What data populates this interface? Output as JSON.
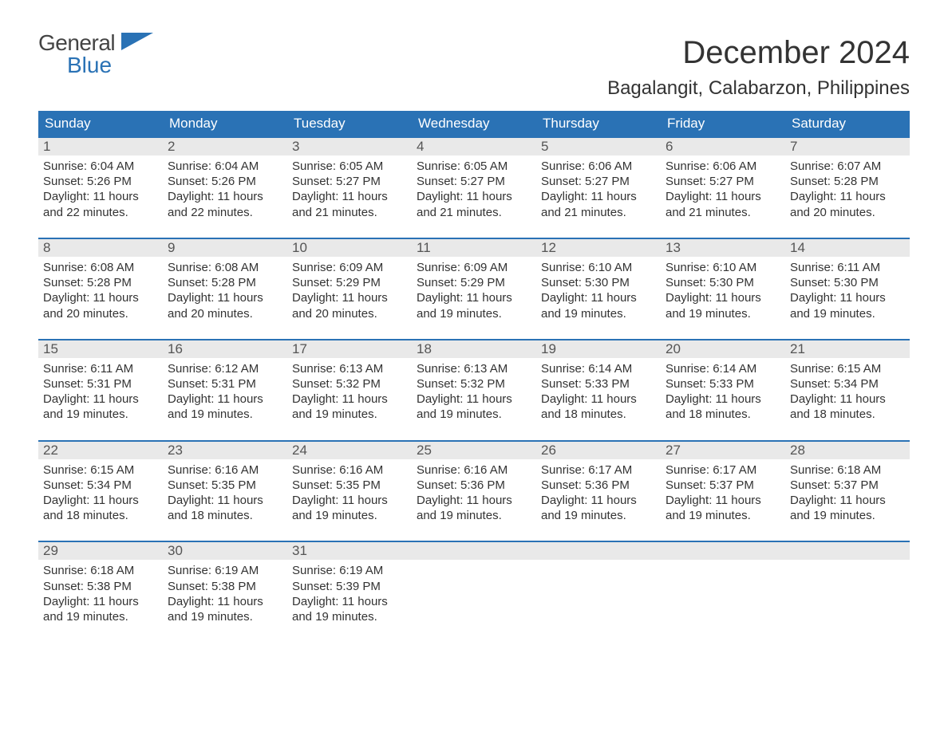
{
  "logo": {
    "line1": "General",
    "line2": "Blue"
  },
  "title": "December 2024",
  "location": "Bagalangit, Calabarzon, Philippines",
  "colors": {
    "header_bg": "#2a72b5",
    "header_text": "#ffffff",
    "daynum_bg": "#e9e9e9",
    "body_text": "#333333",
    "logo_blue": "#2a72b5"
  },
  "day_headers": [
    "Sunday",
    "Monday",
    "Tuesday",
    "Wednesday",
    "Thursday",
    "Friday",
    "Saturday"
  ],
  "weeks": [
    [
      {
        "n": "1",
        "sunrise": "Sunrise: 6:04 AM",
        "sunset": "Sunset: 5:26 PM",
        "day1": "Daylight: 11 hours",
        "day2": "and 22 minutes."
      },
      {
        "n": "2",
        "sunrise": "Sunrise: 6:04 AM",
        "sunset": "Sunset: 5:26 PM",
        "day1": "Daylight: 11 hours",
        "day2": "and 22 minutes."
      },
      {
        "n": "3",
        "sunrise": "Sunrise: 6:05 AM",
        "sunset": "Sunset: 5:27 PM",
        "day1": "Daylight: 11 hours",
        "day2": "and 21 minutes."
      },
      {
        "n": "4",
        "sunrise": "Sunrise: 6:05 AM",
        "sunset": "Sunset: 5:27 PM",
        "day1": "Daylight: 11 hours",
        "day2": "and 21 minutes."
      },
      {
        "n": "5",
        "sunrise": "Sunrise: 6:06 AM",
        "sunset": "Sunset: 5:27 PM",
        "day1": "Daylight: 11 hours",
        "day2": "and 21 minutes."
      },
      {
        "n": "6",
        "sunrise": "Sunrise: 6:06 AM",
        "sunset": "Sunset: 5:27 PM",
        "day1": "Daylight: 11 hours",
        "day2": "and 21 minutes."
      },
      {
        "n": "7",
        "sunrise": "Sunrise: 6:07 AM",
        "sunset": "Sunset: 5:28 PM",
        "day1": "Daylight: 11 hours",
        "day2": "and 20 minutes."
      }
    ],
    [
      {
        "n": "8",
        "sunrise": "Sunrise: 6:08 AM",
        "sunset": "Sunset: 5:28 PM",
        "day1": "Daylight: 11 hours",
        "day2": "and 20 minutes."
      },
      {
        "n": "9",
        "sunrise": "Sunrise: 6:08 AM",
        "sunset": "Sunset: 5:28 PM",
        "day1": "Daylight: 11 hours",
        "day2": "and 20 minutes."
      },
      {
        "n": "10",
        "sunrise": "Sunrise: 6:09 AM",
        "sunset": "Sunset: 5:29 PM",
        "day1": "Daylight: 11 hours",
        "day2": "and 20 minutes."
      },
      {
        "n": "11",
        "sunrise": "Sunrise: 6:09 AM",
        "sunset": "Sunset: 5:29 PM",
        "day1": "Daylight: 11 hours",
        "day2": "and 19 minutes."
      },
      {
        "n": "12",
        "sunrise": "Sunrise: 6:10 AM",
        "sunset": "Sunset: 5:30 PM",
        "day1": "Daylight: 11 hours",
        "day2": "and 19 minutes."
      },
      {
        "n": "13",
        "sunrise": "Sunrise: 6:10 AM",
        "sunset": "Sunset: 5:30 PM",
        "day1": "Daylight: 11 hours",
        "day2": "and 19 minutes."
      },
      {
        "n": "14",
        "sunrise": "Sunrise: 6:11 AM",
        "sunset": "Sunset: 5:30 PM",
        "day1": "Daylight: 11 hours",
        "day2": "and 19 minutes."
      }
    ],
    [
      {
        "n": "15",
        "sunrise": "Sunrise: 6:11 AM",
        "sunset": "Sunset: 5:31 PM",
        "day1": "Daylight: 11 hours",
        "day2": "and 19 minutes."
      },
      {
        "n": "16",
        "sunrise": "Sunrise: 6:12 AM",
        "sunset": "Sunset: 5:31 PM",
        "day1": "Daylight: 11 hours",
        "day2": "and 19 minutes."
      },
      {
        "n": "17",
        "sunrise": "Sunrise: 6:13 AM",
        "sunset": "Sunset: 5:32 PM",
        "day1": "Daylight: 11 hours",
        "day2": "and 19 minutes."
      },
      {
        "n": "18",
        "sunrise": "Sunrise: 6:13 AM",
        "sunset": "Sunset: 5:32 PM",
        "day1": "Daylight: 11 hours",
        "day2": "and 19 minutes."
      },
      {
        "n": "19",
        "sunrise": "Sunrise: 6:14 AM",
        "sunset": "Sunset: 5:33 PM",
        "day1": "Daylight: 11 hours",
        "day2": "and 18 minutes."
      },
      {
        "n": "20",
        "sunrise": "Sunrise: 6:14 AM",
        "sunset": "Sunset: 5:33 PM",
        "day1": "Daylight: 11 hours",
        "day2": "and 18 minutes."
      },
      {
        "n": "21",
        "sunrise": "Sunrise: 6:15 AM",
        "sunset": "Sunset: 5:34 PM",
        "day1": "Daylight: 11 hours",
        "day2": "and 18 minutes."
      }
    ],
    [
      {
        "n": "22",
        "sunrise": "Sunrise: 6:15 AM",
        "sunset": "Sunset: 5:34 PM",
        "day1": "Daylight: 11 hours",
        "day2": "and 18 minutes."
      },
      {
        "n": "23",
        "sunrise": "Sunrise: 6:16 AM",
        "sunset": "Sunset: 5:35 PM",
        "day1": "Daylight: 11 hours",
        "day2": "and 18 minutes."
      },
      {
        "n": "24",
        "sunrise": "Sunrise: 6:16 AM",
        "sunset": "Sunset: 5:35 PM",
        "day1": "Daylight: 11 hours",
        "day2": "and 19 minutes."
      },
      {
        "n": "25",
        "sunrise": "Sunrise: 6:16 AM",
        "sunset": "Sunset: 5:36 PM",
        "day1": "Daylight: 11 hours",
        "day2": "and 19 minutes."
      },
      {
        "n": "26",
        "sunrise": "Sunrise: 6:17 AM",
        "sunset": "Sunset: 5:36 PM",
        "day1": "Daylight: 11 hours",
        "day2": "and 19 minutes."
      },
      {
        "n": "27",
        "sunrise": "Sunrise: 6:17 AM",
        "sunset": "Sunset: 5:37 PM",
        "day1": "Daylight: 11 hours",
        "day2": "and 19 minutes."
      },
      {
        "n": "28",
        "sunrise": "Sunrise: 6:18 AM",
        "sunset": "Sunset: 5:37 PM",
        "day1": "Daylight: 11 hours",
        "day2": "and 19 minutes."
      }
    ],
    [
      {
        "n": "29",
        "sunrise": "Sunrise: 6:18 AM",
        "sunset": "Sunset: 5:38 PM",
        "day1": "Daylight: 11 hours",
        "day2": "and 19 minutes."
      },
      {
        "n": "30",
        "sunrise": "Sunrise: 6:19 AM",
        "sunset": "Sunset: 5:38 PM",
        "day1": "Daylight: 11 hours",
        "day2": "and 19 minutes."
      },
      {
        "n": "31",
        "sunrise": "Sunrise: 6:19 AM",
        "sunset": "Sunset: 5:39 PM",
        "day1": "Daylight: 11 hours",
        "day2": "and 19 minutes."
      },
      null,
      null,
      null,
      null
    ]
  ]
}
